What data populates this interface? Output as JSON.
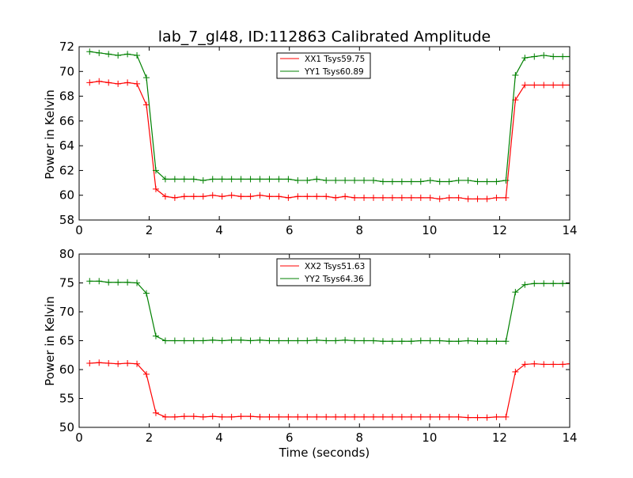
{
  "chart_data": [
    {
      "type": "line",
      "title": "lab_7_gl48, ID:112863 Calibrated Amplitude",
      "xlabel": "",
      "ylabel": "Power in Kelvin",
      "xlim": [
        0,
        14
      ],
      "ylim": [
        58,
        72
      ],
      "xticks": [
        "0",
        "2",
        "4",
        "6",
        "8",
        "10",
        "12",
        "14"
      ],
      "yticks": [
        "58",
        "60",
        "62",
        "64",
        "66",
        "68",
        "70",
        "72"
      ],
      "grid": false,
      "legend_position": "top-center",
      "x": [
        0.3,
        0.57,
        0.84,
        1.11,
        1.38,
        1.65,
        1.92,
        2.19,
        2.46,
        2.73,
        3.0,
        3.27,
        3.54,
        3.81,
        4.08,
        4.35,
        4.62,
        4.89,
        5.16,
        5.43,
        5.7,
        5.97,
        6.24,
        6.51,
        6.78,
        7.05,
        7.32,
        7.59,
        7.86,
        8.13,
        8.4,
        8.67,
        8.94,
        9.21,
        9.48,
        9.75,
        10.02,
        10.29,
        10.56,
        10.83,
        11.1,
        11.37,
        11.64,
        11.91,
        12.18,
        12.45,
        12.72,
        12.99,
        13.26,
        13.53,
        13.8,
        14.0
      ],
      "series": [
        {
          "name": "XX1 Tsys59.75",
          "color": "#ff0000",
          "values": [
            69.1,
            69.2,
            69.1,
            69.0,
            69.1,
            69.0,
            67.3,
            60.5,
            59.9,
            59.8,
            59.9,
            59.9,
            59.9,
            60.0,
            59.9,
            60.0,
            59.9,
            59.9,
            60.0,
            59.9,
            59.9,
            59.8,
            59.9,
            59.9,
            59.9,
            59.9,
            59.8,
            59.9,
            59.8,
            59.8,
            59.8,
            59.8,
            59.8,
            59.8,
            59.8,
            59.8,
            59.8,
            59.7,
            59.8,
            59.8,
            59.7,
            59.7,
            59.7,
            59.8,
            59.8,
            67.7,
            68.9,
            68.9,
            68.9,
            68.9,
            68.9,
            68.9
          ]
        },
        {
          "name": "YY1 Tsys60.89",
          "color": "#008000",
          "values": [
            71.6,
            71.5,
            71.4,
            71.3,
            71.4,
            71.3,
            69.5,
            62.0,
            61.3,
            61.3,
            61.3,
            61.3,
            61.2,
            61.3,
            61.3,
            61.3,
            61.3,
            61.3,
            61.3,
            61.3,
            61.3,
            61.3,
            61.2,
            61.2,
            61.3,
            61.2,
            61.2,
            61.2,
            61.2,
            61.2,
            61.2,
            61.1,
            61.1,
            61.1,
            61.1,
            61.1,
            61.2,
            61.1,
            61.1,
            61.2,
            61.2,
            61.1,
            61.1,
            61.1,
            61.2,
            69.7,
            71.1,
            71.2,
            71.3,
            71.2,
            71.2,
            71.2
          ]
        }
      ]
    },
    {
      "type": "line",
      "title": "",
      "xlabel": "Time (seconds)",
      "ylabel": "Power in Kelvin",
      "xlim": [
        0,
        14
      ],
      "ylim": [
        50,
        80
      ],
      "xticks": [
        "0",
        "2",
        "4",
        "6",
        "8",
        "10",
        "12",
        "14"
      ],
      "yticks": [
        "50",
        "55",
        "60",
        "65",
        "70",
        "75",
        "80"
      ],
      "grid": false,
      "legend_position": "top-center",
      "x": [
        0.3,
        0.57,
        0.84,
        1.11,
        1.38,
        1.65,
        1.92,
        2.19,
        2.46,
        2.73,
        3.0,
        3.27,
        3.54,
        3.81,
        4.08,
        4.35,
        4.62,
        4.89,
        5.16,
        5.43,
        5.7,
        5.97,
        6.24,
        6.51,
        6.78,
        7.05,
        7.32,
        7.59,
        7.86,
        8.13,
        8.4,
        8.67,
        8.94,
        9.21,
        9.48,
        9.75,
        10.02,
        10.29,
        10.56,
        10.83,
        11.1,
        11.37,
        11.64,
        11.91,
        12.18,
        12.45,
        12.72,
        12.99,
        13.26,
        13.53,
        13.8,
        14.0
      ],
      "series": [
        {
          "name": "XX2 Tsys51.63",
          "color": "#ff0000",
          "values": [
            61.1,
            61.2,
            61.1,
            61.0,
            61.1,
            61.0,
            59.2,
            52.5,
            51.8,
            51.8,
            51.9,
            51.9,
            51.8,
            51.9,
            51.8,
            51.8,
            51.9,
            51.9,
            51.8,
            51.8,
            51.8,
            51.8,
            51.8,
            51.8,
            51.8,
            51.8,
            51.8,
            51.8,
            51.8,
            51.8,
            51.8,
            51.8,
            51.8,
            51.8,
            51.8,
            51.8,
            51.8,
            51.8,
            51.8,
            51.8,
            51.7,
            51.7,
            51.7,
            51.8,
            51.8,
            59.6,
            60.9,
            61.0,
            60.9,
            60.9,
            60.9,
            61.0
          ]
        },
        {
          "name": "YY2 Tsys64.36",
          "color": "#008000",
          "values": [
            75.3,
            75.3,
            75.1,
            75.1,
            75.1,
            75.0,
            73.2,
            65.8,
            65.0,
            65.0,
            65.0,
            65.0,
            65.0,
            65.1,
            65.0,
            65.1,
            65.1,
            65.0,
            65.1,
            65.0,
            65.0,
            65.0,
            65.0,
            65.0,
            65.1,
            65.0,
            65.0,
            65.1,
            65.0,
            65.0,
            65.0,
            64.9,
            64.9,
            64.9,
            64.9,
            65.0,
            65.0,
            65.0,
            64.9,
            64.9,
            65.0,
            64.9,
            64.9,
            64.9,
            64.9,
            73.4,
            74.7,
            74.9,
            74.9,
            74.9,
            74.9,
            74.9
          ]
        }
      ]
    }
  ]
}
